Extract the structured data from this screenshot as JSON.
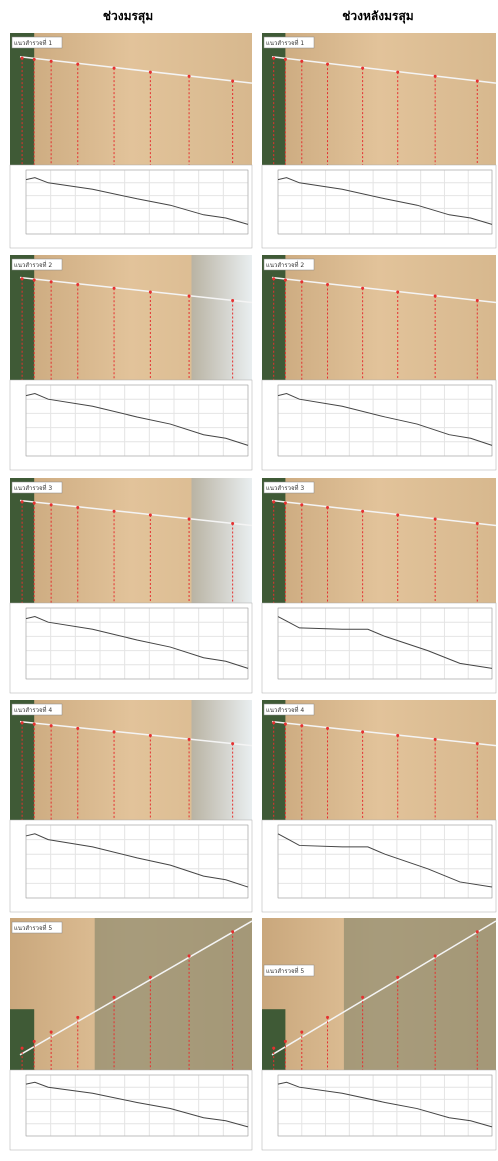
{
  "headers": [
    "ช่วงมรสุม",
    "ช่วงหลังมรสุม"
  ],
  "columns": [
    {
      "panels": [
        {
          "label": "แนวสำรวจที่ 1"
        },
        {
          "label": "แนวสำรวจที่ 2"
        },
        {
          "label": "แนวสำรวจที่ 3"
        },
        {
          "label": "แนวสำรวจที่ 4"
        },
        {
          "label": "แนวสำรวจที่ 5"
        }
      ]
    },
    {
      "panels": [
        {
          "label": "แนวสำรวจที่ 1"
        },
        {
          "label": "แนวสำรวจที่ 2"
        },
        {
          "label": "แนวสำรวจที่ 3"
        },
        {
          "label": "แนวสำรวจที่ 4"
        },
        {
          "label": "แนวสำรวจที่ 5"
        }
      ]
    }
  ]
}
